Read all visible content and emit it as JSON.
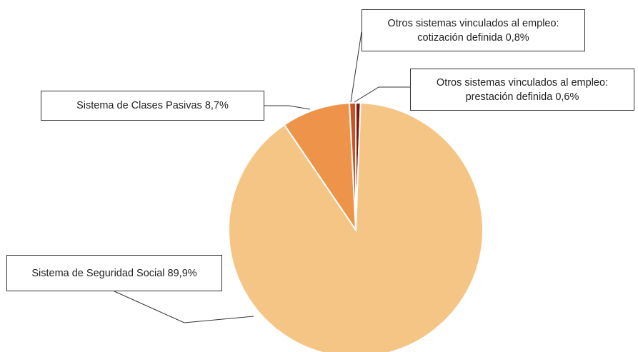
{
  "chart_data": {
    "type": "pie",
    "title": "",
    "slices": [
      {
        "label": "Otros sistemas vinculados al empleo: prestación definida",
        "value": 0.6,
        "value_label": "0,6%",
        "color": "#7b1411"
      },
      {
        "label": "Sistema de Seguridad Social",
        "value": 89.9,
        "value_label": "89,9%",
        "color": "#f5c585"
      },
      {
        "label": "Sistema de Clases Pasivas",
        "value": 8.7,
        "value_label": "8,7%",
        "color": "#ed944a"
      },
      {
        "label": "Otros sistemas vinculados al empleo: cotización definida",
        "value": 0.8,
        "value_label": "0,8%",
        "color": "#d2511e"
      }
    ],
    "labels": {
      "cotizacion": "Otros sistemas vinculados al empleo:\ncotización definida  0,8%",
      "prestacion": "Otros sistemas vinculados al empleo:\nprestación definida  0,6%",
      "clases": "Sistema de Clases Pasivas 8,7%",
      "seguridad": "Sistema de Seguridad Social 89,9%"
    }
  }
}
